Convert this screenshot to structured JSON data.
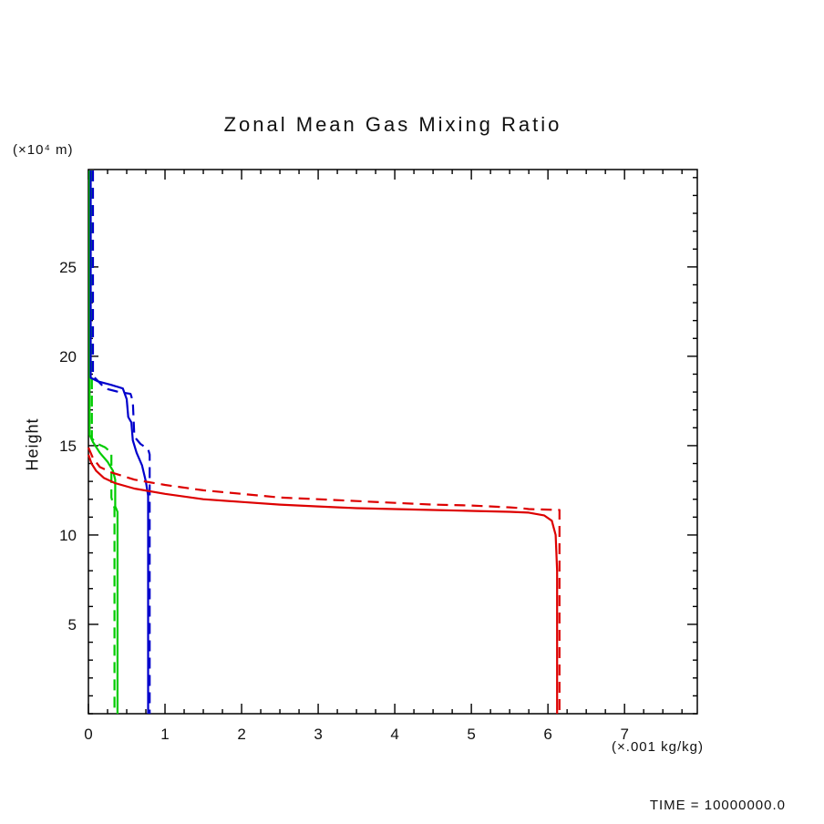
{
  "title": "Zonal Mean Gas Mixing Ratio",
  "labels": {
    "y_units": "(×10⁴ m)",
    "ylabel": "Height",
    "x_units": "(×.001 kg/kg)",
    "time": "TIME = 10000000.0"
  },
  "chart_data": {
    "type": "line",
    "title": "Zonal Mean Gas Mixing Ratio",
    "xlabel": "(×.001 kg/kg)",
    "ylabel": "Height (×10⁴ m)",
    "xlim": [
      0,
      7.95
    ],
    "ylim": [
      0,
      30.45
    ],
    "xticks": [
      0,
      1,
      2,
      3,
      4,
      5,
      6,
      7
    ],
    "yticks": [
      5,
      10,
      15,
      20,
      25
    ],
    "x_tick_labels": [
      "0",
      "1",
      "2",
      "3",
      "4",
      "5",
      "6",
      "7"
    ],
    "y_tick_labels": [
      "5",
      "10",
      "15",
      "20",
      "25"
    ],
    "x_minor_step": 0.25,
    "y_minor_step": 1,
    "grid": false,
    "legend": "none",
    "frame_color": "#000000",
    "series": [
      {
        "name": "green-solid",
        "color": "#00cc00",
        "style": "solid",
        "points": [
          [
            0.015,
            30.4
          ],
          [
            0.015,
            15.6
          ],
          [
            0.06,
            15.2
          ],
          [
            0.15,
            14.6
          ],
          [
            0.25,
            14.1
          ],
          [
            0.32,
            13.6
          ],
          [
            0.35,
            13.1
          ],
          [
            0.35,
            11.6
          ],
          [
            0.38,
            11.3
          ],
          [
            0.38,
            0
          ]
        ]
      },
      {
        "name": "green-dashed",
        "color": "#00cc00",
        "style": "dashed",
        "points": [
          [
            0.045,
            30.4
          ],
          [
            0.045,
            15.4
          ],
          [
            0.12,
            15.1
          ],
          [
            0.22,
            14.9
          ],
          [
            0.3,
            14.6
          ],
          [
            0.3,
            12.1
          ],
          [
            0.34,
            11.5
          ],
          [
            0.34,
            0
          ]
        ]
      },
      {
        "name": "blue-solid",
        "color": "#0000cc",
        "style": "solid",
        "points": [
          [
            0.03,
            30.4
          ],
          [
            0.03,
            18.8
          ],
          [
            0.12,
            18.6
          ],
          [
            0.3,
            18.4
          ],
          [
            0.45,
            18.2
          ],
          [
            0.5,
            17.6
          ],
          [
            0.52,
            16.6
          ],
          [
            0.56,
            16.3
          ],
          [
            0.58,
            15.3
          ],
          [
            0.63,
            14.6
          ],
          [
            0.7,
            13.9
          ],
          [
            0.75,
            13.0
          ],
          [
            0.78,
            12.2
          ],
          [
            0.78,
            0
          ]
        ]
      },
      {
        "name": "blue-dashed",
        "color": "#0000cc",
        "style": "dashed",
        "points": [
          [
            0.06,
            30.4
          ],
          [
            0.06,
            18.9
          ],
          [
            0.22,
            18.2
          ],
          [
            0.4,
            18.0
          ],
          [
            0.55,
            17.9
          ],
          [
            0.58,
            17.5
          ],
          [
            0.6,
            15.5
          ],
          [
            0.68,
            15.1
          ],
          [
            0.78,
            14.8
          ],
          [
            0.8,
            14.5
          ],
          [
            0.8,
            0
          ]
        ]
      },
      {
        "name": "red-solid",
        "color": "#dd0000",
        "style": "solid",
        "points": [
          [
            0.0,
            14.5
          ],
          [
            0.04,
            14.0
          ],
          [
            0.1,
            13.6
          ],
          [
            0.2,
            13.2
          ],
          [
            0.35,
            12.9
          ],
          [
            0.6,
            12.6
          ],
          [
            1.0,
            12.3
          ],
          [
            1.5,
            12.0
          ],
          [
            2.0,
            11.85
          ],
          [
            2.5,
            11.7
          ],
          [
            3.0,
            11.6
          ],
          [
            3.5,
            11.5
          ],
          [
            4.0,
            11.45
          ],
          [
            4.5,
            11.4
          ],
          [
            5.0,
            11.35
          ],
          [
            5.5,
            11.3
          ],
          [
            5.75,
            11.25
          ],
          [
            5.95,
            11.1
          ],
          [
            6.05,
            10.8
          ],
          [
            6.1,
            10.0
          ],
          [
            6.12,
            8.0
          ],
          [
            6.12,
            0
          ]
        ]
      },
      {
        "name": "red-dashed",
        "color": "#dd0000",
        "style": "dashed",
        "points": [
          [
            0.0,
            14.9
          ],
          [
            0.06,
            14.3
          ],
          [
            0.15,
            13.8
          ],
          [
            0.3,
            13.5
          ],
          [
            0.6,
            13.1
          ],
          [
            1.0,
            12.8
          ],
          [
            1.5,
            12.5
          ],
          [
            2.0,
            12.3
          ],
          [
            2.5,
            12.1
          ],
          [
            3.0,
            12.0
          ],
          [
            3.5,
            11.9
          ],
          [
            4.0,
            11.8
          ],
          [
            4.5,
            11.7
          ],
          [
            5.0,
            11.65
          ],
          [
            5.5,
            11.55
          ],
          [
            5.65,
            11.5
          ],
          [
            5.75,
            11.45
          ],
          [
            6.15,
            11.4
          ],
          [
            6.15,
            0
          ]
        ]
      }
    ]
  }
}
